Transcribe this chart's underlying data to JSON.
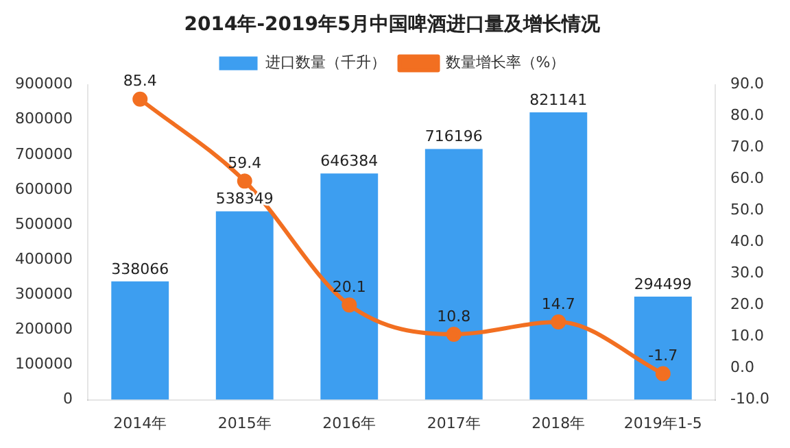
{
  "chart_data": {
    "type": "bar",
    "title": "2014年-2019年5月中国啤酒进口量及增长情况",
    "categories": [
      "2014年",
      "2015年",
      "2016年",
      "2017年",
      "2018年",
      "2019年1-5"
    ],
    "series": [
      {
        "name": "进口数量（千升）",
        "color": "#3d9ef0",
        "values": [
          338066,
          538349,
          646384,
          716196,
          821141,
          294499
        ]
      },
      {
        "name": "数量增长率（%）",
        "type": "line",
        "axis": "y2",
        "color": "#f26f21",
        "values": [
          85.4,
          59.4,
          20.1,
          10.8,
          14.7,
          -1.7
        ]
      }
    ],
    "ylim": [
      0,
      900000
    ],
    "yticks": [
      0,
      100000,
      200000,
      300000,
      400000,
      500000,
      600000,
      700000,
      800000,
      900000
    ],
    "y2lim": [
      -10,
      90
    ],
    "y2ticks": [
      {
        "value": -10,
        "label": "-10.0"
      },
      {
        "value": 0,
        "label": "0.0"
      },
      {
        "value": 10,
        "label": "10.0"
      },
      {
        "value": 20,
        "label": "20.0"
      },
      {
        "value": 30,
        "label": "30.0"
      },
      {
        "value": 40,
        "label": "40.0"
      },
      {
        "value": 50,
        "label": "50.0"
      },
      {
        "value": 60,
        "label": "60.0"
      },
      {
        "value": 70,
        "label": "70.0"
      },
      {
        "value": 80,
        "label": "80.0"
      },
      {
        "value": 90,
        "label": "90.0"
      }
    ],
    "data_labels": true,
    "legend": "top",
    "marker": "circle",
    "line_style": "solid"
  }
}
